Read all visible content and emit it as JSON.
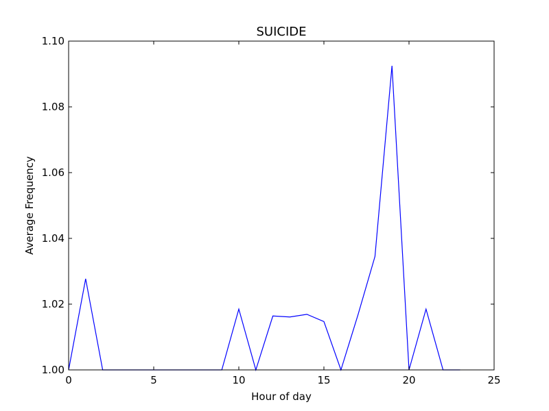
{
  "chart_data": {
    "type": "line",
    "title": "SUICIDE",
    "xlabel": "Hour of day",
    "ylabel": "Average Frequency",
    "xlim": [
      0,
      25
    ],
    "ylim": [
      1.0,
      1.1
    ],
    "xticks": [
      0,
      5,
      10,
      15,
      20,
      25
    ],
    "xtick_labels": [
      "0",
      "5",
      "10",
      "15",
      "20",
      "25"
    ],
    "yticks": [
      1.0,
      1.02,
      1.04,
      1.06,
      1.08,
      1.1
    ],
    "ytick_labels": [
      "1.00",
      "1.02",
      "1.04",
      "1.06",
      "1.08",
      "1.10"
    ],
    "grid": false,
    "series": [
      {
        "color": "#0000ff",
        "x": [
          0,
          1,
          2,
          3,
          4,
          5,
          6,
          7,
          8,
          9,
          10,
          11,
          12,
          13,
          14,
          15,
          16,
          17,
          18,
          19,
          20,
          21,
          22,
          23
        ],
        "y": [
          1.0,
          1.0277,
          1.0,
          1.0,
          1.0,
          1.0,
          1.0,
          1.0,
          1.0,
          1.0,
          1.0185,
          1.0,
          1.0164,
          1.0161,
          1.0169,
          1.0147,
          1.0,
          1.0167,
          1.0345,
          1.0925,
          1.0,
          1.0185,
          1.0,
          1.0
        ]
      }
    ]
  }
}
